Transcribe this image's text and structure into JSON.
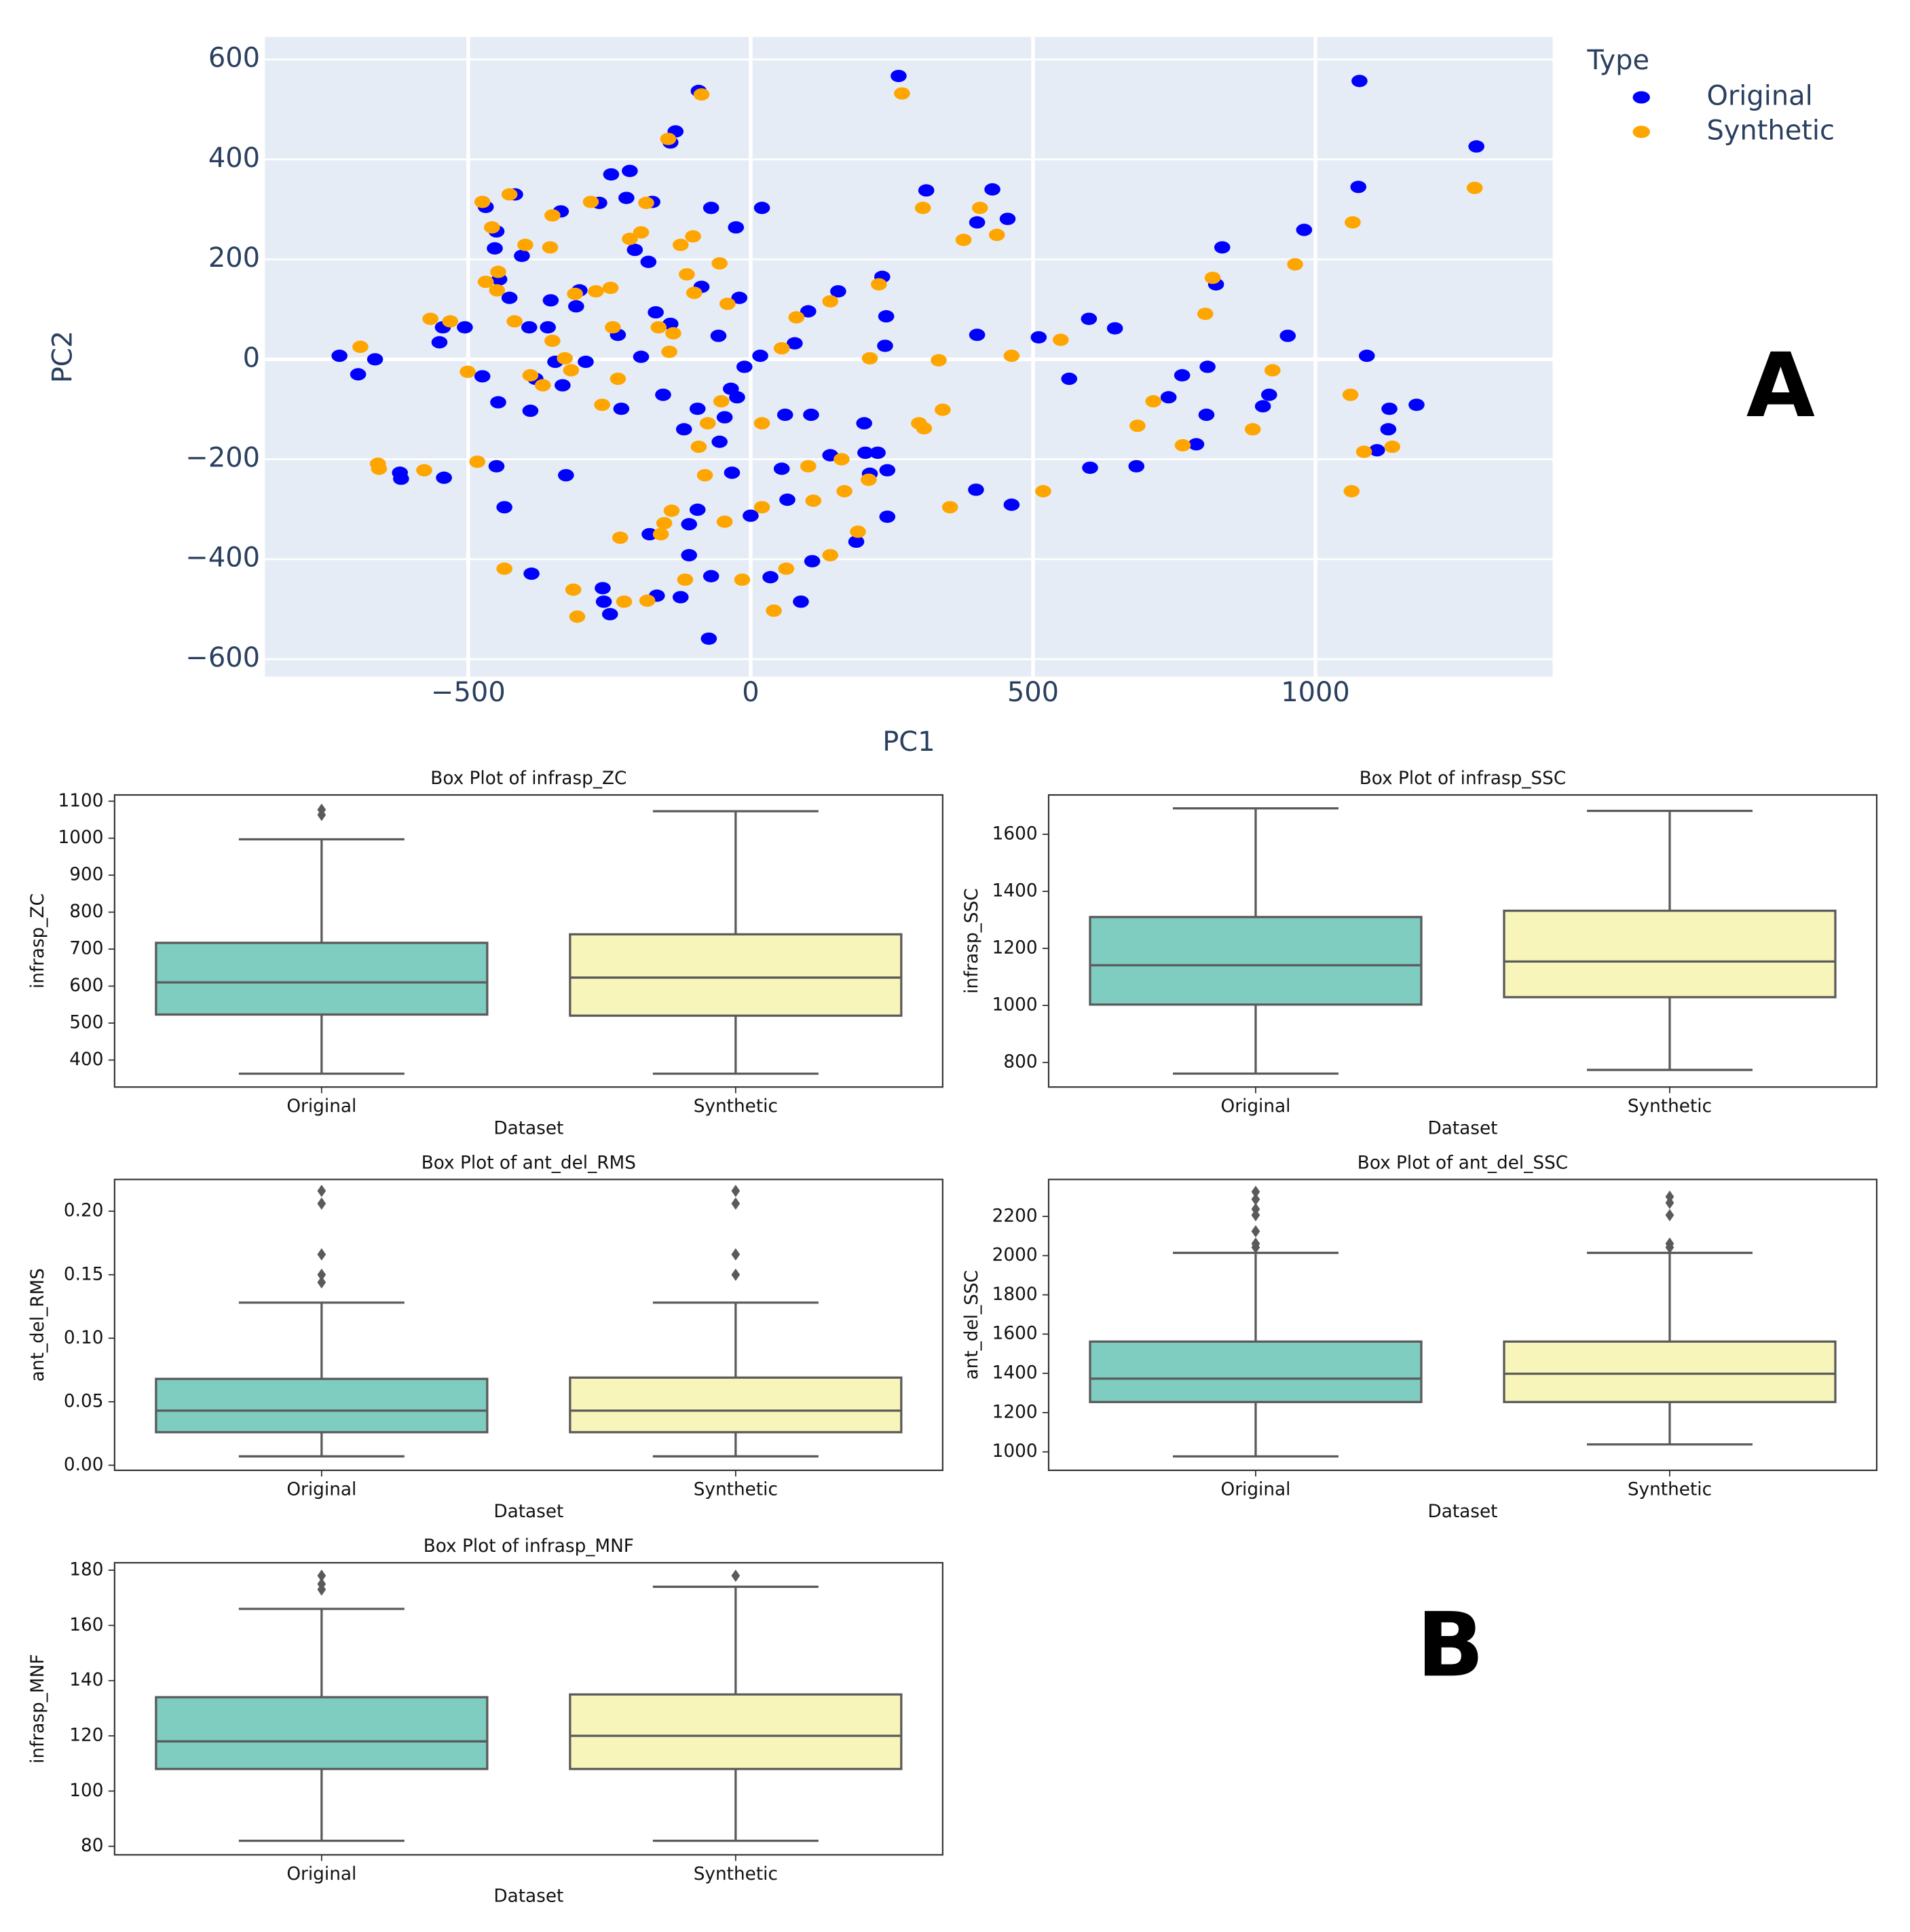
{
  "panel_labels": [
    "A",
    "B"
  ],
  "chart_data": [
    {
      "type": "scatter",
      "xlabel": "PC1",
      "ylabel": "PC2",
      "legend_title": "Type",
      "grid": true,
      "xlim": [
        -860,
        1420
      ],
      "ylim": [
        -635,
        645
      ],
      "xticks": [
        {
          "value": -500,
          "label": "−500"
        },
        0,
        500,
        1000
      ],
      "yticks": [
        {
          "value": -600,
          "label": "−600"
        },
        {
          "value": -400,
          "label": "−400"
        },
        {
          "value": -200,
          "label": "−200"
        },
        0,
        200,
        400,
        600
      ],
      "series": [
        {
          "name": "Original",
          "color": "#0000ff",
          "x": [
            -728,
            -695,
            -665,
            -621,
            -619,
            -551,
            -545,
            -506,
            -543,
            -475,
            -469,
            -450,
            -453,
            -445,
            -447,
            -450,
            -436,
            -427,
            -417,
            -405,
            -392,
            -390,
            -388,
            -381,
            -359,
            -354,
            -346,
            -336,
            -333,
            -327,
            -309,
            -303,
            -292,
            -262,
            -260,
            -249,
            -247,
            -268,
            -235,
            -229,
            -214,
            -220,
            -205,
            -194,
            -181,
            -174,
            -168,
            -155,
            -142,
            -133,
            -142,
            -118,
            -179,
            -166,
            -124,
            -109,
            -109,
            -94,
            -94,
            -92,
            -87,
            -70,
            -74,
            -70,
            -57,
            -55,
            -46,
            -35,
            -33,
            -26,
            -24,
            -20,
            -11,
            0,
            17,
            20,
            35,
            55,
            61,
            65,
            78,
            89,
            102,
            107,
            109,
            141,
            155,
            187,
            201,
            203,
            211,
            225,
            233,
            240,
            238,
            242,
            242,
            262,
            311,
            401,
            401,
            428,
            455,
            399,
            462,
            510,
            564,
            599,
            601,
            645,
            683,
            740,
            764,
            789,
            809,
            807,
            824,
            835,
            907,
            918,
            951,
            980,
            1078,
            1076,
            1091,
            1109,
            1131,
            1129,
            1179,
            1285
          ],
          "y": [
            7,
            -30,
            0,
            -227,
            -239,
            34,
            64,
            64,
            -237,
            -34,
            305,
            256,
            222,
            160,
            -86,
            -214,
            -296,
            123,
            330,
            207,
            64,
            -103,
            -429,
            -39,
            64,
            118,
            -5,
            296,
            -52,
            -232,
            106,
            138,
            -5,
            -458,
            -485,
            -510,
            370,
            313,
            49,
            -99,
            377,
            323,
            219,
            5,
            195,
            315,
            94,
            -71,
            71,
            456,
            434,
            -140,
            -350,
            -473,
            -476,
            -392,
            -330,
            -99,
            -301,
            537,
            145,
            303,
            -559,
            -434,
            47,
            -165,
            -116,
            -59,
            -227,
            264,
            -76,
            123,
            -15,
            -313,
            7,
            303,
            -436,
            -219,
            -111,
            -281,
            32,
            -485,
            96,
            -111,
            -404,
            -192,
            136,
            -365,
            -128,
            -187,
            -229,
            -187,
            165,
            86,
            27,
            -222,
            -315,
            567,
            338,
            49,
            274,
            340,
            281,
            -261,
            -291,
            44,
            -39,
            81,
            -217,
            62,
            -214,
            -76,
            -32,
            -170,
            -15,
            -111,
            150,
            224,
            -94,
            -71,
            47,
            259,
            557,
            345,
            7,
            -182,
            -99,
            -140,
            -91,
            426
          ]
        },
        {
          "name": "Synthetic",
          "color": "#ffa500",
          "x": [
            -691,
            -660,
            -658,
            -578,
            -567,
            -532,
            -501,
            -484,
            -475,
            -469,
            -458,
            -447,
            -449,
            -427,
            -418,
            -436,
            -399,
            -390,
            -368,
            -351,
            -355,
            -351,
            -329,
            -318,
            -314,
            -307,
            -311,
            -283,
            -274,
            -263,
            -248,
            -244,
            -235,
            -231,
            -224,
            -214,
            -194,
            -183,
            -185,
            -163,
            -159,
            -153,
            -140,
            -144,
            -146,
            -137,
            -124,
            -113,
            -116,
            -102,
            -100,
            -92,
            -87,
            -81,
            -76,
            -55,
            -52,
            -46,
            -41,
            -15,
            20,
            20,
            41,
            55,
            63,
            81,
            102,
            111,
            141,
            141,
            161,
            166,
            190,
            211,
            209,
            227,
            268,
            298,
            305,
            307,
            333,
            340,
            353,
            377,
            406,
            436,
            462,
            518,
            549,
            685,
            713,
            765,
            805,
            818,
            889,
            924,
            964,
            1062,
            1064,
            1066,
            1086,
            1136,
            1282
          ],
          "y": [
            25,
            -209,
            -219,
            -222,
            81,
            76,
            -25,
            -205,
            315,
            155,
            264,
            175,
            138,
            330,
            76,
            -419,
            229,
            -32,
            -52,
            288,
            224,
            37,
            2,
            -22,
            -461,
            -515,
            131,
            315,
            136,
            -91,
            143,
            64,
            -39,
            -357,
            -485,
            241,
            254,
            -483,
            313,
            64,
            -350,
            -328,
            -303,
            15,
            441,
            52,
            229,
            170,
            -441,
            246,
            133,
            -175,
            530,
            -232,
            -128,
            192,
            -84,
            -325,
            111,
            -441,
            -128,
            -296,
            -503,
            22,
            -419,
            84,
            -214,
            -283,
            116,
            -392,
            -200,
            -264,
            -345,
            2,
            -241,
            150,
            532,
            -128,
            303,
            -138,
            -2,
            -101,
            -296,
            239,
            303,
            249,
            7,
            -264,
            39,
            -133,
            -84,
            -172,
            91,
            163,
            -140,
            -22,
            190,
            -71,
            -264,
            274,
            -185,
            -175,
            343
          ]
        }
      ]
    },
    {
      "type": "box",
      "title": "Box Plot of infrasp_ZC",
      "xlabel": "Dataset",
      "ylabel": "infrasp_ZC",
      "categories": [
        "Original",
        "Synthetic"
      ],
      "colors": [
        "#7fccc0",
        "#f7f5b9"
      ],
      "ylim": [
        327,
        1117
      ],
      "yticks": [
        400,
        500,
        600,
        700,
        800,
        900,
        1000,
        1100
      ],
      "boxes": [
        {
          "whislo": 363,
          "q1": 523,
          "med": 610,
          "q3": 717,
          "whishi": 997,
          "fliers": [
            1077,
            1063
          ]
        },
        {
          "whislo": 363,
          "q1": 520,
          "med": 623,
          "q3": 740,
          "whishi": 1073,
          "fliers": []
        }
      ]
    },
    {
      "type": "box",
      "title": "Box Plot of infrasp_SSC",
      "xlabel": "Dataset",
      "ylabel": "infrasp_SSC",
      "categories": [
        "Original",
        "Synthetic"
      ],
      "colors": [
        "#7fccc0",
        "#f7f5b9"
      ],
      "ylim": [
        714,
        1738
      ],
      "yticks": [
        800,
        1000,
        1200,
        1400,
        1600
      ],
      "boxes": [
        {
          "whislo": 761,
          "q1": 1003,
          "med": 1141,
          "q3": 1310,
          "whishi": 1691,
          "fliers": []
        },
        {
          "whislo": 774,
          "q1": 1029,
          "med": 1154,
          "q3": 1332,
          "whishi": 1682,
          "fliers": []
        }
      ]
    },
    {
      "type": "box",
      "title": "Box Plot of ant_del_RMS",
      "xlabel": "Dataset",
      "ylabel": "ant_del_RMS",
      "categories": [
        "Original",
        "Synthetic"
      ],
      "colors": [
        "#7fccc0",
        "#f7f5b9"
      ],
      "ylim": [
        -0.004,
        0.225
      ],
      "yticks": [
        {
          "value": 0,
          "label": "0.00"
        },
        0.05,
        {
          "value": 0.1,
          "label": "0.10"
        },
        0.15,
        {
          "value": 0.2,
          "label": "0.20"
        }
      ],
      "boxes": [
        {
          "whislo": 0.007,
          "q1": 0.026,
          "med": 0.043,
          "q3": 0.068,
          "whishi": 0.128,
          "fliers": [
            0.216,
            0.206,
            0.166,
            0.15,
            0.144
          ]
        },
        {
          "whislo": 0.007,
          "q1": 0.026,
          "med": 0.043,
          "q3": 0.069,
          "whishi": 0.128,
          "fliers": [
            0.216,
            0.206,
            0.166,
            0.15
          ]
        }
      ]
    },
    {
      "type": "box",
      "title": "Box Plot of ant_del_SSC",
      "xlabel": "Dataset",
      "ylabel": "ant_del_SSC",
      "categories": [
        "Original",
        "Synthetic"
      ],
      "colors": [
        "#7fccc0",
        "#f7f5b9"
      ],
      "ylim": [
        906,
        2388
      ],
      "yticks": [
        1000,
        1200,
        1400,
        1600,
        1800,
        2000,
        2200
      ],
      "boxes": [
        {
          "whislo": 977,
          "q1": 1254,
          "med": 1373,
          "q3": 1562,
          "whishi": 2014,
          "fliers": [
            2325,
            2287,
            2237,
            2206,
            2124,
            2061,
            2042
          ]
        },
        {
          "whislo": 1038,
          "q1": 1254,
          "med": 1398,
          "q3": 1562,
          "whishi": 2014,
          "fliers": [
            2300,
            2269,
            2206,
            2061,
            2042
          ]
        }
      ]
    },
    {
      "type": "box",
      "title": "Box Plot of infrasp_MNF",
      "xlabel": "Dataset",
      "ylabel": "infrasp_MNF",
      "categories": [
        "Original",
        "Synthetic"
      ],
      "colors": [
        "#7fccc0",
        "#f7f5b9"
      ],
      "ylim": [
        76.9,
        182.7
      ],
      "yticks": [
        80,
        100,
        120,
        140,
        160,
        180
      ],
      "boxes": [
        {
          "whislo": 82,
          "q1": 108,
          "med": 118,
          "q3": 134,
          "whishi": 166,
          "fliers": [
            178,
            175,
            173
          ]
        },
        {
          "whislo": 82,
          "q1": 108,
          "med": 120,
          "q3": 135,
          "whishi": 174,
          "fliers": [
            178
          ]
        }
      ]
    }
  ]
}
